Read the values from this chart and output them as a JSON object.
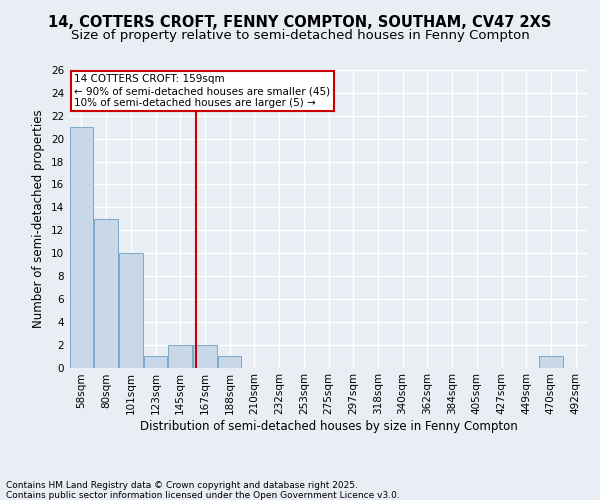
{
  "title1": "14, COTTERS CROFT, FENNY COMPTON, SOUTHAM, CV47 2XS",
  "title2": "Size of property relative to semi-detached houses in Fenny Compton",
  "xlabel": "Distribution of semi-detached houses by size in Fenny Compton",
  "ylabel": "Number of semi-detached properties",
  "bin_labels": [
    "58sqm",
    "80sqm",
    "101sqm",
    "123sqm",
    "145sqm",
    "167sqm",
    "188sqm",
    "210sqm",
    "232sqm",
    "253sqm",
    "275sqm",
    "297sqm",
    "318sqm",
    "340sqm",
    "362sqm",
    "384sqm",
    "405sqm",
    "427sqm",
    "449sqm",
    "470sqm",
    "492sqm"
  ],
  "bar_values": [
    21,
    13,
    10,
    1,
    2,
    2,
    1,
    0,
    0,
    0,
    0,
    0,
    0,
    0,
    0,
    0,
    0,
    0,
    0,
    1,
    0
  ],
  "bar_color": "#c8d8e8",
  "bar_edge_color": "#7aaac8",
  "vline_x_index": 4.636,
  "annotation_title": "14 COTTERS CROFT: 159sqm",
  "annotation_line1": "← 90% of semi-detached houses are smaller (45)",
  "annotation_line2": "10% of semi-detached houses are larger (5) →",
  "annotation_box_color": "#ffffff",
  "annotation_border_color": "#cc0000",
  "vline_color": "#cc0000",
  "ylim": [
    0,
    26
  ],
  "yticks": [
    0,
    2,
    4,
    6,
    8,
    10,
    12,
    14,
    16,
    18,
    20,
    22,
    24,
    26
  ],
  "footer1": "Contains HM Land Registry data © Crown copyright and database right 2025.",
  "footer2": "Contains public sector information licensed under the Open Government Licence v3.0.",
  "bg_color": "#e8eef4",
  "grid_color": "#ffffff",
  "title1_fontsize": 10.5,
  "title2_fontsize": 9.5,
  "axis_label_fontsize": 8.5,
  "tick_fontsize": 7.5,
  "annotation_fontsize": 7.5,
  "footer_fontsize": 6.5
}
